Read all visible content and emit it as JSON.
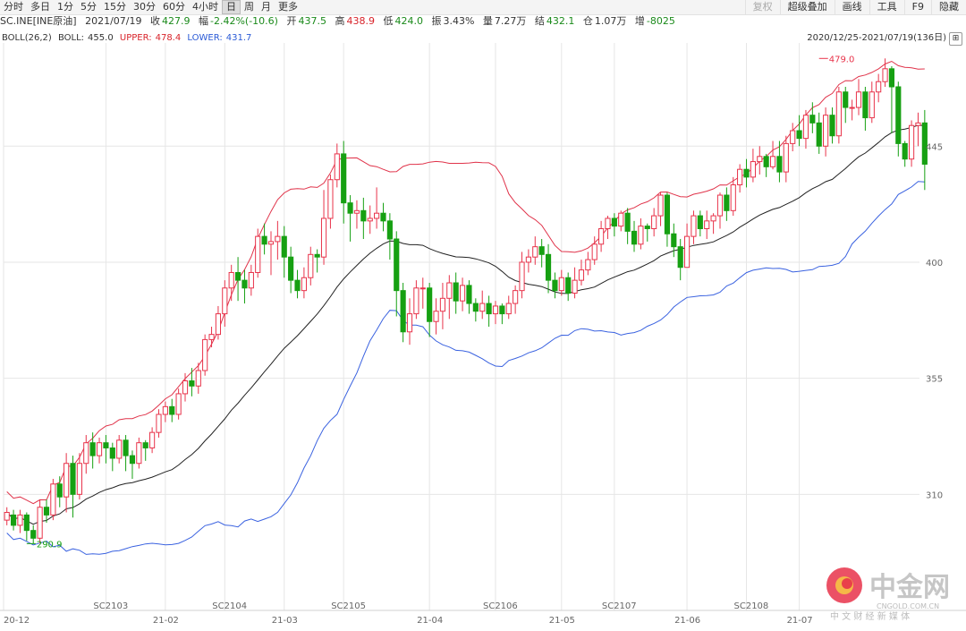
{
  "toolbar": {
    "periods": [
      "分时",
      "多日",
      "1分",
      "5分",
      "15分",
      "30分",
      "60分",
      "4小时",
      "日",
      "周",
      "月",
      "更多"
    ],
    "active_period": "日",
    "quote": {
      "symbol": "SC.INE[INE原油]",
      "date": "2021/07/19",
      "close_label": "收",
      "close": "427.9",
      "change_label": "幅",
      "change": "-2.42%(-10.6)",
      "open_label": "开",
      "open": "437.5",
      "high_label": "高",
      "high": "438.9",
      "low_label": "低",
      "low": "424.0",
      "amplitude_label": "振",
      "amplitude": "3.43%",
      "volume_label": "量",
      "volume": "7.27万",
      "settle_label": "结",
      "settle": "432.1",
      "oi_label": "仓",
      "oi": "1.07万",
      "oi_change_label": "增",
      "oi_change": "-8025"
    },
    "tools": [
      "复权",
      "超级叠加",
      "画线",
      "工具",
      "F9",
      "隐藏"
    ]
  },
  "boll_header": {
    "name": "BOLL(26,2)",
    "boll_label": "BOLL:",
    "boll": "455.0",
    "upper_label": "UPPER:",
    "upper": "478.4",
    "lower_label": "LOWER:",
    "lower": "431.7"
  },
  "date_range": "2020/12/25-2021/07/19(136日)",
  "expand_icon": "expand-icon",
  "colors": {
    "up": "#e8334a",
    "down": "#16a012",
    "upper": "#e0334a",
    "mid": "#222222",
    "lower": "#3a62e0",
    "grid": "#e6e6e6"
  },
  "watermark": {
    "brand": "中金网",
    "domain": "CNGOLD.COM.CN",
    "tagline": "中 文 财 经 新 媒 体",
    "logo_color": "#e8334a"
  },
  "chart_data": {
    "type": "candlestick",
    "ylim": [
      265,
      485
    ],
    "yticks": [
      310,
      355,
      400,
      445
    ],
    "x_range": [
      0,
      136
    ],
    "x_ticks": [
      {
        "label": "20-12",
        "index": 0
      },
      {
        "label": "SC2103",
        "index": 15
      },
      {
        "label": "21-02",
        "index": 24
      },
      {
        "label": "SC2104",
        "index": 33
      },
      {
        "label": "21-03",
        "index": 42
      },
      {
        "label": "SC2105",
        "index": 51
      },
      {
        "label": "21-04",
        "index": 64
      },
      {
        "label": "SC2106",
        "index": 74
      },
      {
        "label": "21-05",
        "index": 84
      },
      {
        "label": "SC2107",
        "index": 92
      },
      {
        "label": "21-06",
        "index": 103
      },
      {
        "label": "SC2108",
        "index": 112
      },
      {
        "label": "21-07",
        "index": 120
      }
    ],
    "annotations": [
      {
        "label": "290.9",
        "index": 3,
        "value": 290.9
      },
      {
        "label": "479.0",
        "index": 123,
        "value": 479.0
      }
    ],
    "candles": [
      [
        300,
        303,
        298,
        305
      ],
      [
        302,
        298,
        296,
        304
      ],
      [
        298,
        302,
        295,
        304
      ],
      [
        302,
        296,
        292,
        303
      ],
      [
        296,
        293,
        291,
        298
      ],
      [
        293,
        305,
        291,
        308
      ],
      [
        305,
        302,
        299,
        308
      ],
      [
        302,
        314,
        300,
        316
      ],
      [
        314,
        309,
        305,
        317
      ],
      [
        309,
        322,
        303,
        326
      ],
      [
        322,
        310,
        301,
        325
      ],
      [
        310,
        322,
        308,
        326
      ],
      [
        322,
        330,
        318,
        333
      ],
      [
        330,
        325,
        320,
        334
      ],
      [
        325,
        330,
        322,
        332
      ],
      [
        330,
        328,
        322,
        333
      ],
      [
        328,
        324,
        319,
        330
      ],
      [
        324,
        331,
        322,
        333
      ],
      [
        331,
        325,
        319,
        333
      ],
      [
        325,
        322,
        316,
        327
      ],
      [
        322,
        330,
        320,
        332
      ],
      [
        330,
        328,
        323,
        331
      ],
      [
        328,
        334,
        326,
        336
      ],
      [
        334,
        341,
        332,
        343
      ],
      [
        341,
        344,
        338,
        346
      ],
      [
        344,
        341,
        338,
        347
      ],
      [
        341,
        349,
        339,
        351
      ],
      [
        349,
        354,
        346,
        357
      ],
      [
        354,
        352,
        348,
        359
      ],
      [
        352,
        358,
        349,
        361
      ],
      [
        358,
        370,
        356,
        372
      ],
      [
        370,
        372,
        367,
        375
      ],
      [
        372,
        380,
        370,
        383
      ],
      [
        380,
        390,
        375,
        393
      ],
      [
        390,
        396,
        385,
        399
      ],
      [
        396,
        393,
        385,
        402
      ],
      [
        393,
        390,
        384,
        397
      ],
      [
        390,
        396,
        387,
        399
      ],
      [
        396,
        410,
        394,
        413
      ],
      [
        410,
        407,
        403,
        415
      ],
      [
        407,
        408,
        395,
        412
      ],
      [
        408,
        410,
        401,
        416
      ],
      [
        410,
        402,
        394,
        414
      ],
      [
        402,
        393,
        388,
        406
      ],
      [
        393,
        389,
        386,
        397
      ],
      [
        389,
        394,
        386,
        398
      ],
      [
        394,
        403,
        391,
        406
      ],
      [
        403,
        402,
        396,
        405
      ],
      [
        402,
        417,
        399,
        428
      ],
      [
        417,
        432,
        413,
        434
      ],
      [
        432,
        442,
        429,
        446
      ],
      [
        442,
        423,
        415,
        447
      ],
      [
        423,
        419,
        408,
        426
      ],
      [
        419,
        420,
        413,
        424
      ],
      [
        420,
        416,
        409,
        425
      ],
      [
        416,
        417,
        411,
        422
      ],
      [
        417,
        419,
        413,
        429
      ],
      [
        419,
        416,
        412,
        423
      ],
      [
        416,
        409,
        401,
        419
      ],
      [
        409,
        389,
        379,
        412
      ],
      [
        389,
        373,
        369,
        392
      ],
      [
        373,
        380,
        368,
        386
      ],
      [
        380,
        390,
        378,
        393
      ],
      [
        390,
        390,
        382,
        394
      ],
      [
        390,
        377,
        371,
        392
      ],
      [
        377,
        381,
        372,
        386
      ],
      [
        381,
        386,
        374,
        392
      ],
      [
        386,
        392,
        378,
        395
      ],
      [
        392,
        385,
        380,
        396
      ],
      [
        385,
        391,
        381,
        394
      ],
      [
        391,
        384,
        380,
        393
      ],
      [
        384,
        381,
        377,
        386
      ],
      [
        381,
        384,
        378,
        389
      ],
      [
        384,
        380,
        375,
        387
      ],
      [
        380,
        383,
        376,
        385
      ],
      [
        383,
        380,
        376,
        384
      ],
      [
        380,
        384,
        378,
        387
      ],
      [
        384,
        389,
        380,
        391
      ],
      [
        389,
        400,
        386,
        404
      ],
      [
        400,
        402,
        396,
        405
      ],
      [
        402,
        406,
        399,
        410
      ],
      [
        406,
        403,
        398,
        409
      ],
      [
        403,
        393,
        388,
        407
      ],
      [
        393,
        389,
        386,
        396
      ],
      [
        389,
        394,
        387,
        397
      ],
      [
        394,
        388,
        385,
        396
      ],
      [
        388,
        393,
        386,
        398
      ],
      [
        393,
        397,
        391,
        401
      ],
      [
        397,
        401,
        395,
        404
      ],
      [
        401,
        407,
        399,
        410
      ],
      [
        407,
        413,
        404,
        416
      ],
      [
        413,
        417,
        409,
        418
      ],
      [
        417,
        414,
        410,
        419
      ],
      [
        414,
        419,
        412,
        420
      ],
      [
        419,
        412,
        407,
        421
      ],
      [
        412,
        407,
        404,
        416
      ],
      [
        407,
        414,
        405,
        417
      ],
      [
        414,
        413,
        408,
        415
      ],
      [
        413,
        418,
        410,
        421
      ],
      [
        418,
        426,
        414,
        427
      ],
      [
        426,
        411,
        406,
        427
      ],
      [
        411,
        406,
        402,
        415
      ],
      [
        406,
        398,
        393,
        409
      ],
      [
        398,
        410,
        398,
        415
      ],
      [
        410,
        418,
        407,
        420
      ],
      [
        418,
        413,
        410,
        420
      ],
      [
        413,
        416,
        409,
        420
      ],
      [
        416,
        418,
        411,
        419
      ],
      [
        418,
        426,
        413,
        427
      ],
      [
        426,
        420,
        416,
        429
      ],
      [
        420,
        430,
        418,
        433
      ],
      [
        430,
        436,
        427,
        438
      ],
      [
        436,
        433,
        429,
        440
      ],
      [
        433,
        439,
        431,
        444
      ],
      [
        439,
        441,
        434,
        445
      ],
      [
        441,
        437,
        433,
        442
      ],
      [
        437,
        441,
        436,
        447
      ],
      [
        441,
        435,
        431,
        447
      ],
      [
        435,
        446,
        431,
        449
      ],
      [
        446,
        451,
        443,
        454
      ],
      [
        451,
        448,
        445,
        457
      ],
      [
        448,
        457,
        444,
        459
      ],
      [
        457,
        454,
        450,
        462
      ],
      [
        454,
        445,
        442,
        458
      ],
      [
        445,
        457,
        441,
        460
      ],
      [
        457,
        449,
        446,
        460
      ],
      [
        449,
        466,
        446,
        468
      ],
      [
        466,
        460,
        454,
        468
      ],
      [
        460,
        460,
        455,
        463
      ],
      [
        460,
        466,
        457,
        471
      ],
      [
        466,
        456,
        451,
        468
      ],
      [
        456,
        466,
        454,
        470
      ],
      [
        466,
        470,
        462,
        473
      ],
      [
        470,
        475,
        468,
        479
      ],
      [
        475,
        468,
        450,
        476
      ],
      [
        468,
        446,
        441,
        470
      ],
      [
        446,
        440,
        437,
        447
      ],
      [
        440,
        453,
        437,
        455
      ],
      [
        453,
        454,
        445,
        458
      ],
      [
        454,
        438,
        428,
        459
      ]
    ]
  }
}
